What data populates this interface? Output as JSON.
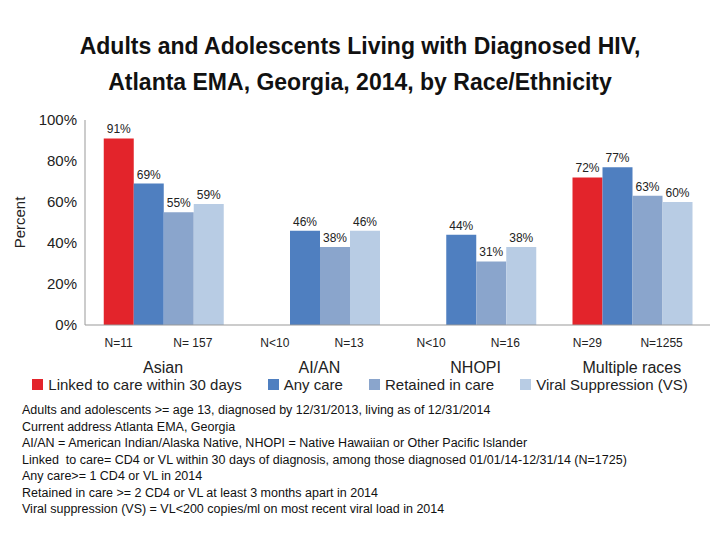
{
  "chart_data": {
    "type": "bar",
    "title": "Adults and Adolescents Living with Diagnosed HIV,\nAtlanta EMA, Georgia, 2014, by Race/Ethnicity",
    "y_label": "Percent",
    "categories": [
      "Asian",
      "AI/AN",
      "NHOPI",
      "Multiple races"
    ],
    "series": [
      {
        "name": "Linked to care within 30 days",
        "color": "#E3242B",
        "values": [
          91,
          null,
          null,
          72
        ],
        "value_labels": [
          "91%",
          null,
          null,
          "72%"
        ]
      },
      {
        "name": "Any care",
        "color": "#4F7FC0",
        "values": [
          69,
          46,
          44,
          77
        ],
        "value_labels": [
          "69%",
          "46%",
          "44%",
          "77%"
        ]
      },
      {
        "name": "Retained in care",
        "color": "#8AA5CC",
        "values": [
          55,
          38,
          31,
          63
        ],
        "value_labels": [
          "55%",
          "38%",
          "31%",
          "63%"
        ]
      },
      {
        "name": "Viral Suppression (VS)",
        "color": "#B8CCE4",
        "values": [
          59,
          46,
          38,
          60
        ],
        "value_labels": [
          "59%",
          "46%",
          "38%",
          "60%"
        ]
      }
    ],
    "ylim": [
      0,
      100
    ],
    "yticks": [
      {
        "value": 0,
        "label": "0%"
      },
      {
        "value": 20,
        "label": "20%"
      },
      {
        "value": 40,
        "label": "40%"
      },
      {
        "value": 60,
        "label": "60%"
      },
      {
        "value": 80,
        "label": "80%"
      },
      {
        "value": 100,
        "label": "100%"
      }
    ],
    "grid": false,
    "data_labels": true,
    "legend": "bottom",
    "annotations": {
      "linked": [
        "N=11",
        "N<10",
        "N<10",
        "N=29"
      ],
      "others": [
        "N= 157",
        "N=13",
        "N=16",
        "N=1255"
      ]
    },
    "footnotes": [
      "Adults and adolescents >= age 13, diagnosed by 12/31/2013, living as of 12/31/2014",
      "Current address Atlanta EMA, Georgia",
      "AI/AN = American Indian/Alaska Native, NHOPI = Native Hawaiian or Other Pacific Islander",
      "Linked  to care= CD4 or VL within 30 days of diagnosis, among those diagnosed 01/01/14-12/31/14 (N=1725)",
      "Any care>= 1 CD4 or VL in 2014",
      "Retained in care >= 2 CD4 or VL at least 3 months apart in 2014",
      "Viral suppression (VS) = VL<200 copies/ml on most recent viral load in 2014"
    ]
  }
}
